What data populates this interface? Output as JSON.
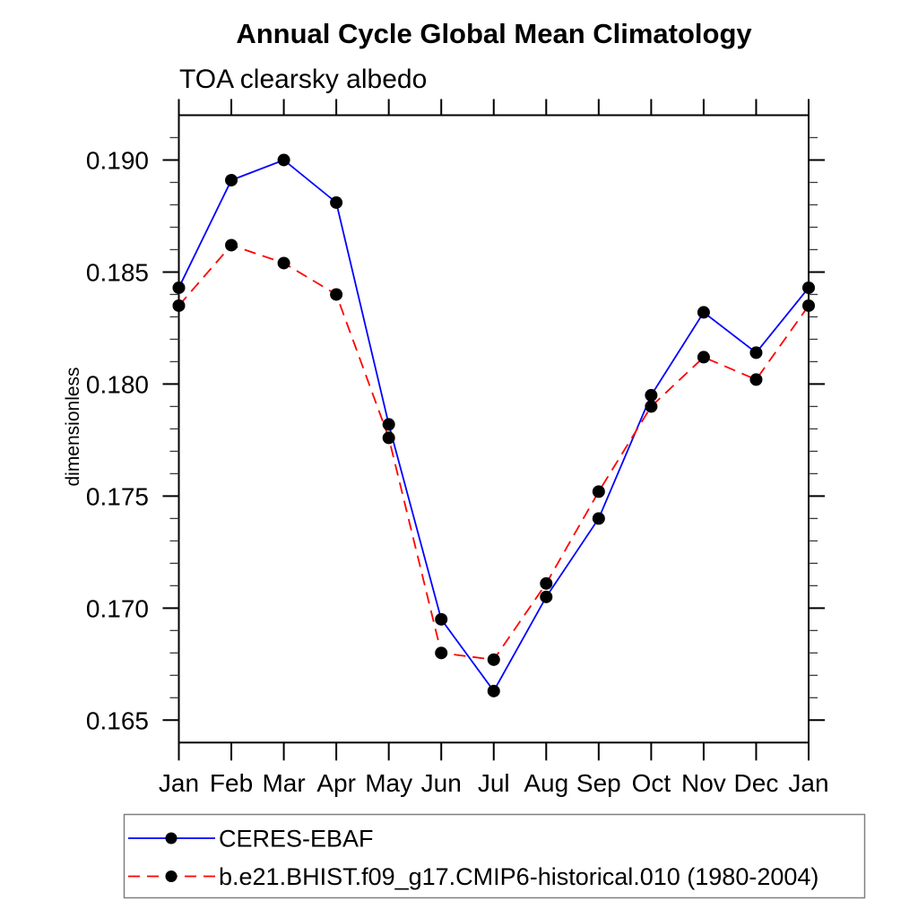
{
  "page": {
    "background": "#ffffff",
    "text_color": "#000000"
  },
  "header": {
    "title": "Annual Cycle Global Mean Climatology",
    "subtitle": "TOA clearsky albedo"
  },
  "chart_data": {
    "type": "line",
    "title": "Annual Cycle Global Mean Climatology",
    "subtitle": "TOA clearsky albedo",
    "xlabel": "",
    "ylabel": "dimensionless",
    "categories": [
      "Jan",
      "Feb",
      "Mar",
      "Apr",
      "May",
      "Jun",
      "Jul",
      "Aug",
      "Sep",
      "Oct",
      "Nov",
      "Dec",
      "Jan"
    ],
    "ylim": [
      0.164,
      0.192
    ],
    "yticks_major": [
      0.165,
      0.17,
      0.175,
      0.18,
      0.185,
      0.19
    ],
    "ytick_labels": [
      "0.165",
      "0.170",
      "0.175",
      "0.180",
      "0.185",
      "0.190"
    ],
    "minor_tick_step": 0.001,
    "grid": false,
    "legend_position": "bottom-left",
    "frame_color": "#000000",
    "legend_border_color": "#808080",
    "marker_color": "#000000",
    "series": [
      {
        "name": "CERES-EBAF",
        "color": "#0000ff",
        "line_style": "solid",
        "marker": "filled-circle",
        "values": [
          0.1843,
          0.1891,
          0.19,
          0.1881,
          0.1782,
          0.1695,
          0.1663,
          0.1705,
          0.174,
          0.1795,
          0.1832,
          0.1814,
          0.1843
        ]
      },
      {
        "name": "b.e21.BHIST.f09_g17.CMIP6-historical.010 (1980-2004)",
        "color": "#ff0000",
        "line_style": "dashed",
        "marker": "filled-circle",
        "values": [
          0.1835,
          0.1862,
          0.1854,
          0.184,
          0.1776,
          0.168,
          0.1677,
          0.1711,
          0.1752,
          0.179,
          0.1812,
          0.1802,
          0.1835
        ]
      }
    ]
  }
}
